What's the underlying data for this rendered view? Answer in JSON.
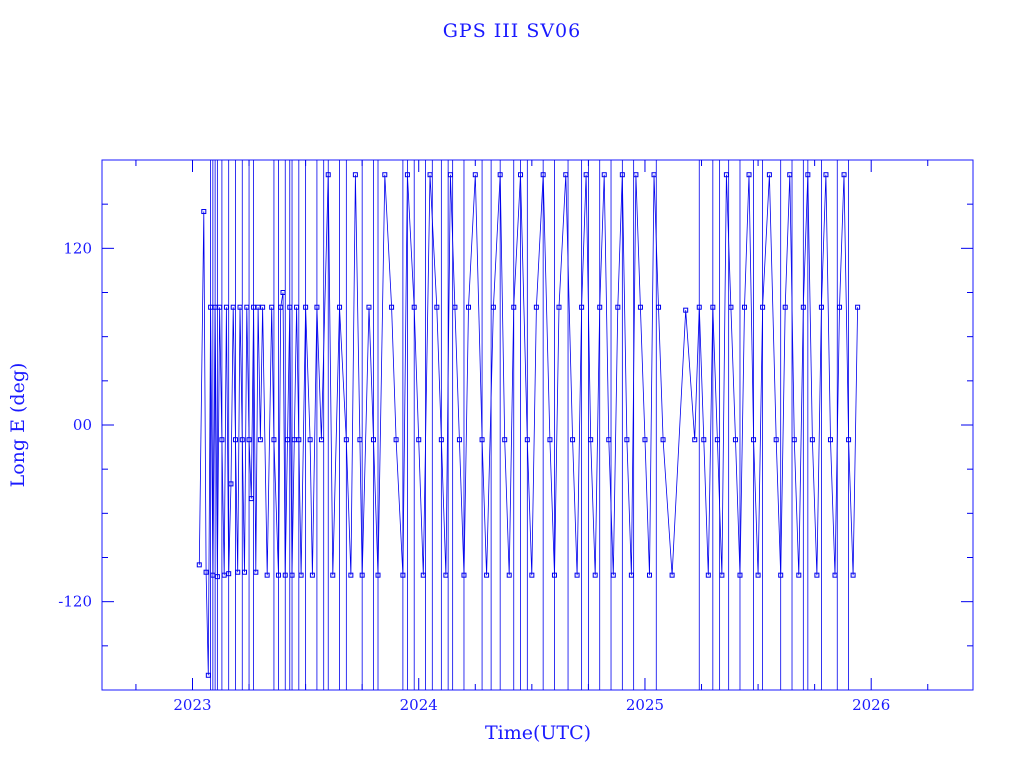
{
  "chart_data": {
    "type": "line",
    "title": "GPS  III  SV06",
    "xlabel": "Time(UTC)",
    "ylabel": "Long E (deg)",
    "xlim": [
      2022.6,
      2026.45
    ],
    "ylim": [
      -180,
      180
    ],
    "x_tick_labels": [
      "2023",
      "2024",
      "2025",
      "2026"
    ],
    "x_tick_values": [
      2023,
      2024,
      2025,
      2026
    ],
    "y_tick_labels": [
      "-120",
      "00",
      "120"
    ],
    "y_tick_values": [
      -120,
      0,
      120
    ],
    "color": "#0000ee",
    "series": [
      {
        "x": [
          2023.03,
          2023.05,
          2023.06,
          2023.07,
          2023.08,
          2023.09,
          2023.1,
          2023.11,
          2023.12,
          2023.13,
          2023.14,
          2023.15,
          2023.16,
          2023.17,
          2023.18,
          2023.19,
          2023.2,
          2023.21,
          2023.22,
          2023.23,
          2023.24,
          2023.25,
          2023.26,
          2023.27,
          2023.28,
          2023.29,
          2023.3,
          2023.31,
          2023.33,
          2023.35,
          2023.36,
          2023.38,
          2023.39,
          2023.4,
          2023.41,
          2023.42,
          2023.43,
          2023.44,
          2023.45,
          2023.46,
          2023.47,
          2023.48,
          2023.5,
          2023.52,
          2023.53,
          2023.55,
          2023.57,
          2023.6,
          2023.62,
          2023.65,
          2023.68,
          2023.7,
          2023.72,
          2023.74,
          2023.75,
          2023.78,
          2023.8,
          2023.82,
          2023.85,
          2023.88,
          2023.9,
          2023.93,
          2023.95,
          2023.98,
          2024.0,
          2024.02,
          2024.05,
          2024.08,
          2024.1,
          2024.12,
          2024.14,
          2024.16,
          2024.18,
          2024.2,
          2024.22,
          2024.25,
          2024.28,
          2024.3,
          2024.33,
          2024.36,
          2024.38,
          2024.4,
          2024.42,
          2024.45,
          2024.48,
          2024.5,
          2024.52,
          2024.55,
          2024.58,
          2024.6,
          2024.62,
          2024.65,
          2024.68,
          2024.7,
          2024.72,
          2024.74,
          2024.76,
          2024.78,
          2024.8,
          2024.82,
          2024.84,
          2024.86,
          2024.88,
          2024.9,
          2024.92,
          2024.94,
          2024.96,
          2024.98,
          2025.0,
          2025.02,
          2025.04,
          2025.06,
          2025.08,
          2025.12,
          2025.18,
          2025.22,
          2025.24,
          2025.26,
          2025.28,
          2025.3,
          2025.32,
          2025.34,
          2025.36,
          2025.38,
          2025.4,
          2025.42,
          2025.44,
          2025.46,
          2025.48,
          2025.5,
          2025.52,
          2025.55,
          2025.58,
          2025.6,
          2025.62,
          2025.64,
          2025.66,
          2025.68,
          2025.7,
          2025.72,
          2025.74,
          2025.76,
          2025.78,
          2025.8,
          2025.82,
          2025.84,
          2025.86,
          2025.88,
          2025.9,
          2025.92,
          2025.94
        ],
        "y": [
          -95,
          145,
          -100,
          -170,
          80,
          -102,
          80,
          -103,
          80,
          -10,
          -102,
          80,
          -101,
          -40,
          80,
          -10,
          -100,
          80,
          -10,
          -100,
          80,
          -10,
          -50,
          80,
          -100,
          80,
          -10,
          80,
          -102,
          80,
          -10,
          -102,
          80,
          90,
          -102,
          -10,
          80,
          -102,
          -10,
          80,
          -10,
          -102,
          80,
          -10,
          -102,
          80,
          -10,
          170,
          -102,
          80,
          -10,
          -102,
          170,
          -10,
          -102,
          80,
          -10,
          -102,
          170,
          80,
          -10,
          -102,
          170,
          80,
          -10,
          -102,
          170,
          80,
          -10,
          -102,
          170,
          80,
          -10,
          -102,
          80,
          170,
          -10,
          -102,
          80,
          170,
          -10,
          -102,
          80,
          170,
          -10,
          -102,
          80,
          170,
          -10,
          -102,
          80,
          170,
          -10,
          -102,
          80,
          170,
          -10,
          -102,
          80,
          170,
          -10,
          -102,
          80,
          170,
          -10,
          -102,
          170,
          80,
          -10,
          -102,
          170,
          80,
          -10,
          -102,
          78,
          -10,
          80,
          -10,
          -102,
          80,
          -10,
          -102,
          170,
          80,
          -10,
          -102,
          80,
          170,
          -10,
          -102,
          80,
          170,
          -10,
          -102,
          80,
          170,
          -10,
          -102,
          80,
          170,
          -10,
          -102,
          80,
          170,
          -10,
          -102,
          80,
          170,
          -10,
          -102,
          80
        ],
        "spikes_x": [
          2023.08,
          2023.09,
          2023.1,
          2023.11,
          2023.13,
          2023.16,
          2023.19,
          2023.22,
          2023.25,
          2023.27,
          2023.36,
          2023.38,
          2023.41,
          2023.43,
          2023.44,
          2023.47,
          2023.5,
          2023.55,
          2023.58,
          2023.6,
          2023.65,
          2023.68,
          2023.75,
          2023.8,
          2023.82,
          2023.93,
          2023.95,
          2023.98,
          2024.03,
          2024.06,
          2024.1,
          2024.13,
          2024.15,
          2024.2,
          2024.28,
          2024.32,
          2024.36,
          2024.42,
          2024.45,
          2024.48,
          2024.55,
          2024.6,
          2024.66,
          2024.72,
          2024.75,
          2024.8,
          2024.85,
          2024.9,
          2024.95,
          2025.05,
          2025.24,
          2025.3,
          2025.33,
          2025.37,
          2025.42,
          2025.48,
          2025.52,
          2025.6,
          2025.65,
          2025.7,
          2025.72,
          2025.78,
          2025.85,
          2025.9
        ]
      }
    ]
  }
}
